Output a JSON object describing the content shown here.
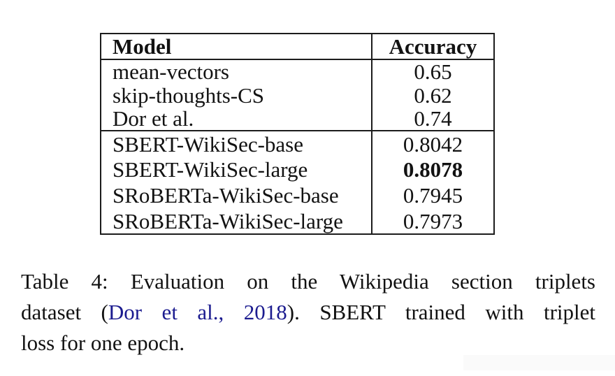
{
  "table": {
    "headers": {
      "model": "Model",
      "accuracy": "Accuracy"
    },
    "group1": [
      {
        "model": "mean-vectors",
        "accuracy": "0.65"
      },
      {
        "model": "skip-thoughts-CS",
        "accuracy": "0.62"
      },
      {
        "model": "Dor et al.",
        "accuracy": "0.74"
      }
    ],
    "group2": [
      {
        "model": "SBERT-WikiSec-base",
        "accuracy": "0.8042"
      },
      {
        "model": "SBERT-WikiSec-large",
        "accuracy": "0.8078"
      },
      {
        "model": "SRoBERTa-WikiSec-base",
        "accuracy": "0.7945"
      },
      {
        "model": "SRoBERTa-WikiSec-large",
        "accuracy": "0.7973"
      }
    ],
    "best_value": "0.8078"
  },
  "caption": {
    "line1": "Table 4: Evaluation on the Wikipedia section triplets",
    "line2_pre": "dataset (",
    "line2_link": "Dor et al., 2018",
    "line2_post": "). SBERT trained with triplet",
    "line3": "loss for one epoch."
  },
  "colors": {
    "text": "#121212",
    "border": "#1c1c1c",
    "citation_link": "#1b1b8f",
    "background": "#ffffff",
    "footer_shade": "#fafafa"
  }
}
